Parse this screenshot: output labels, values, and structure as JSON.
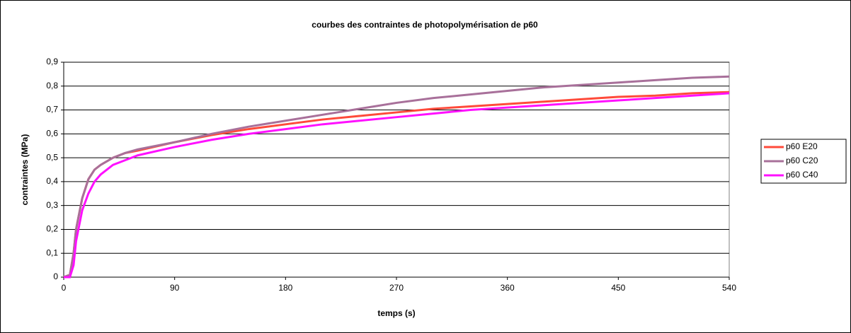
{
  "chart_data": {
    "type": "line",
    "title": "courbes des contraintes de photopolymérisation de p60",
    "x_label": "temps (s)",
    "y_label": "contraintes (MPa)",
    "x": [
      0,
      5,
      8,
      10,
      15,
      20,
      25,
      30,
      40,
      50,
      60,
      90,
      120,
      150,
      180,
      210,
      240,
      270,
      300,
      330,
      360,
      390,
      420,
      450,
      480,
      510,
      540
    ],
    "series": [
      {
        "name": "p60 E20",
        "color": "#ff4a3a",
        "values": [
          0,
          0.01,
          0.1,
          0.2,
          0.33,
          0.41,
          0.45,
          0.47,
          0.5,
          0.52,
          0.53,
          0.565,
          0.595,
          0.62,
          0.64,
          0.66,
          0.675,
          0.69,
          0.705,
          0.715,
          0.725,
          0.735,
          0.745,
          0.755,
          0.76,
          0.77,
          0.775
        ]
      },
      {
        "name": "p60 C20",
        "color": "#a8709a",
        "values": [
          0,
          0.01,
          0.1,
          0.2,
          0.33,
          0.41,
          0.45,
          0.47,
          0.5,
          0.52,
          0.535,
          0.565,
          0.6,
          0.63,
          0.655,
          0.68,
          0.705,
          0.73,
          0.75,
          0.765,
          0.78,
          0.795,
          0.805,
          0.815,
          0.825,
          0.835,
          0.84
        ]
      },
      {
        "name": "p60 C40",
        "color": "#ff10ff",
        "values": [
          0,
          0,
          0.05,
          0.15,
          0.28,
          0.35,
          0.4,
          0.43,
          0.47,
          0.49,
          0.51,
          0.545,
          0.575,
          0.6,
          0.62,
          0.64,
          0.655,
          0.67,
          0.685,
          0.7,
          0.71,
          0.72,
          0.73,
          0.74,
          0.75,
          0.76,
          0.77
        ]
      }
    ],
    "xlim": [
      0,
      540
    ],
    "xticks": [
      0,
      90,
      180,
      270,
      360,
      450,
      540
    ],
    "ylim": [
      0,
      0.9
    ],
    "yticks": [
      0,
      {
        "value": 0.1,
        "label": "0,1"
      },
      {
        "value": 0.2,
        "label": "0,2"
      },
      {
        "value": 0.3,
        "label": "0,3"
      },
      {
        "value": 0.4,
        "label": "0,4"
      },
      {
        "value": 0.5,
        "label": "0,5"
      },
      {
        "value": 0.6,
        "label": "0,6"
      },
      {
        "value": 0.7,
        "label": "0,7"
      },
      {
        "value": 0.8,
        "label": "0,8"
      },
      {
        "value": 0.9,
        "label": "0,9"
      }
    ],
    "grid": true,
    "legend": "right"
  }
}
